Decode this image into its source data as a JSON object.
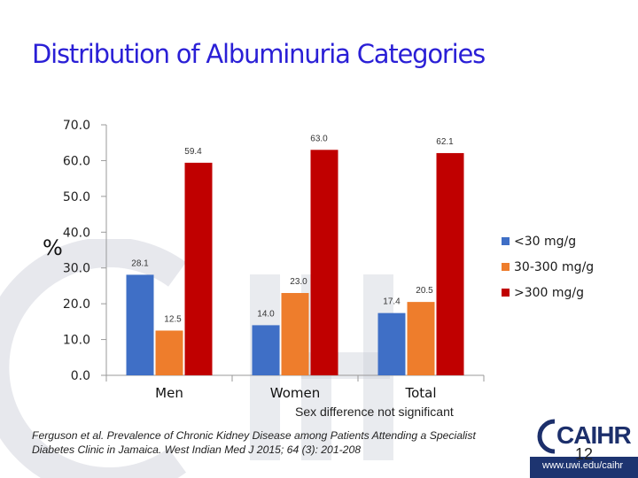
{
  "slide": {
    "title": "Distribution of Albuminuria Categories",
    "note": "Sex difference not significant",
    "citation_line1": "Ferguson et al. Prevalence of Chronic Kidney Disease among Patients Attending a Specialist",
    "citation_line2": "Diabetes Clinic in Jamaica. West Indian Med J 2015; 64 (3): 201-208",
    "slide_number": "12",
    "logo_text": "CAIHR",
    "url": "www.uwi.edu/caihr"
  },
  "chart_data": {
    "type": "bar",
    "ylabel": "%",
    "ylim": [
      0,
      70
    ],
    "yticks": [
      "0.0",
      "10.0",
      "20.0",
      "30.0",
      "40.0",
      "50.0",
      "60.0",
      "70.0"
    ],
    "categories": [
      "Men",
      "Women",
      "Total"
    ],
    "series": [
      {
        "name": "<30 mg/g",
        "color": "#3f6fc6",
        "values": [
          28.1,
          14.0,
          17.4
        ],
        "labels": [
          "28.1",
          "14.0",
          "17.4"
        ]
      },
      {
        "name": "30-300 mg/g",
        "color": "#ee7d2c",
        "values": [
          12.5,
          23.0,
          20.5
        ],
        "labels": [
          "12.5",
          "23.0",
          "20.5"
        ]
      },
      {
        "name": ">300 mg/g",
        "color": "#c00000",
        "values": [
          59.4,
          63.0,
          62.1
        ],
        "labels": [
          "59.4",
          "63.0",
          "62.1"
        ]
      }
    ],
    "legend_position": "right",
    "grid": false
  }
}
